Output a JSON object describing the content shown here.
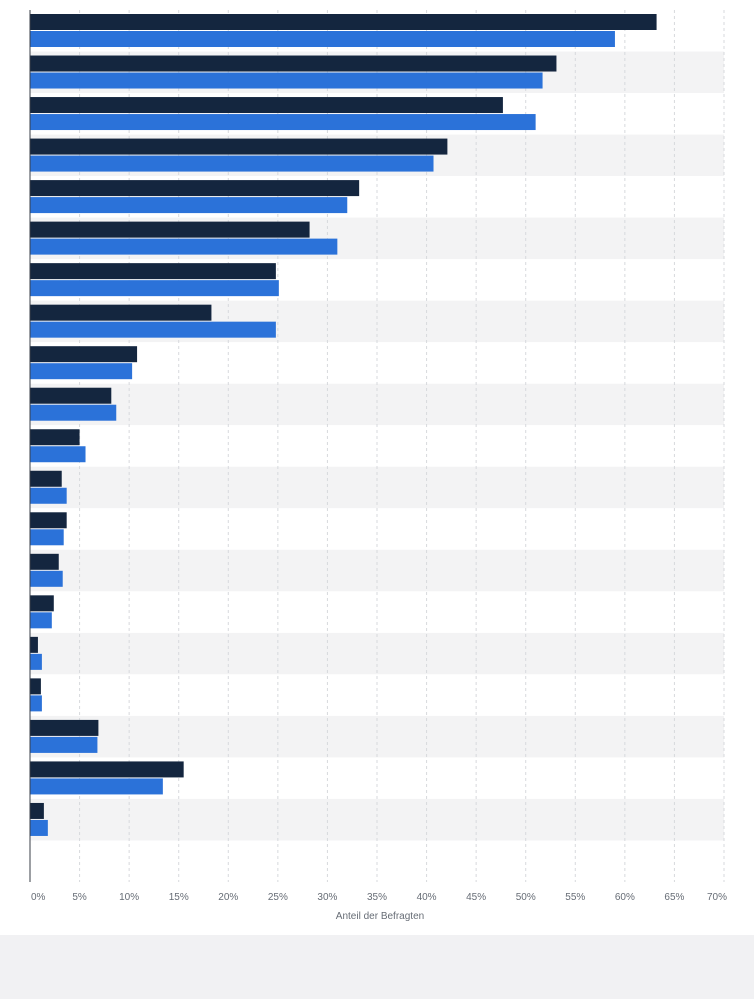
{
  "chart_data": {
    "type": "bar",
    "orientation": "horizontal",
    "xlabel": "Anteil der Befragten",
    "ylabel": "",
    "xlim": [
      0,
      70
    ],
    "x_ticks": [
      "0%",
      "5%",
      "10%",
      "15%",
      "20%",
      "25%",
      "30%",
      "35%",
      "40%",
      "45%",
      "50%",
      "55%",
      "60%",
      "65%",
      "70%"
    ],
    "grid": true,
    "colors": {
      "series_1": "#14263f",
      "series_2": "#2b72d9",
      "band": "#f3f3f4",
      "grid": "#d7d9dd",
      "axis": "#3a3f47"
    },
    "series": [
      {
        "values": [
          63.2,
          53.1,
          47.7,
          42.1,
          33.2,
          28.2,
          24.8,
          18.3,
          10.8,
          8.2,
          5.0,
          3.2,
          3.7,
          2.9,
          2.4,
          0.8,
          1.1,
          6.9,
          15.5,
          1.4
        ]
      },
      {
        "values": [
          59.0,
          51.7,
          51.0,
          40.7,
          32.0,
          31.0,
          25.1,
          24.8,
          10.3,
          8.7,
          5.6,
          3.7,
          3.4,
          3.3,
          2.2,
          1.2,
          1.2,
          6.8,
          13.4,
          1.8
        ]
      }
    ]
  }
}
